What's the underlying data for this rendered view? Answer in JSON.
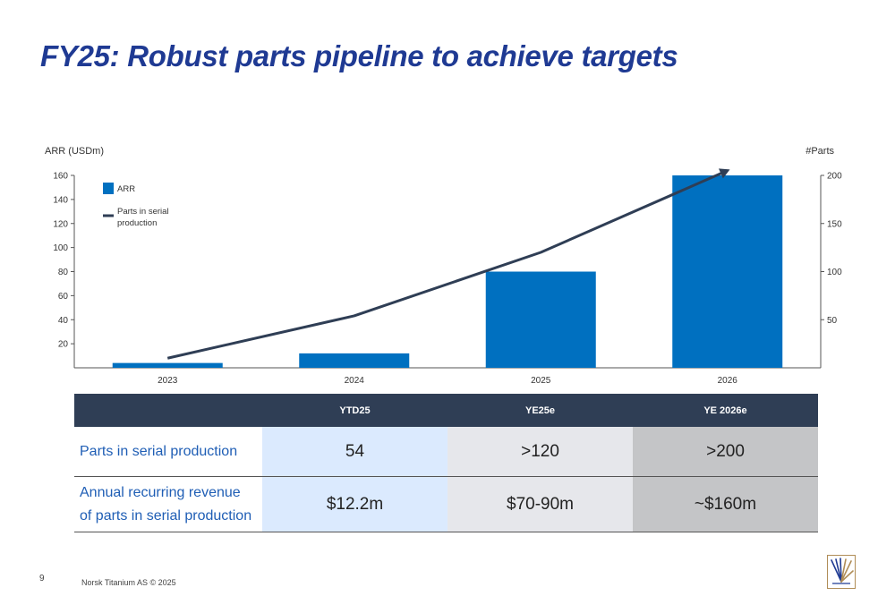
{
  "slide": {
    "title": "FY25: Robust parts pipeline to achieve targets",
    "page_number": "9",
    "footer": "Norsk Titanium AS © 2025"
  },
  "chart_data": {
    "type": "bar",
    "categories": [
      "2023",
      "2024",
      "2025",
      "2026"
    ],
    "series": [
      {
        "name": "ARR",
        "type": "bar",
        "axis": "left",
        "values": [
          4,
          12,
          80,
          160
        ],
        "color": "#0070c0"
      },
      {
        "name": "Parts in serial production",
        "type": "line",
        "axis": "right",
        "values": [
          10,
          54,
          120,
          205
        ],
        "color": "#2f3e55"
      }
    ],
    "ylabel": "ARR (USDm)",
    "y2label": "#Parts",
    "ylim": [
      0,
      160
    ],
    "yticks": [
      20,
      40,
      60,
      80,
      100,
      120,
      140,
      160
    ],
    "y2lim": [
      0,
      200
    ],
    "y2ticks": [
      50,
      100,
      150,
      200
    ],
    "legend": [
      {
        "label": "ARR",
        "kind": "bar"
      },
      {
        "label_lines": [
          "Parts in serial",
          "production"
        ],
        "kind": "line"
      }
    ],
    "legend_position": "top-left",
    "grid": false
  },
  "table": {
    "headers": [
      "",
      "YTD25",
      "YE25e",
      "YE 2026e"
    ],
    "rows": [
      {
        "label_lines": [
          "Parts in serial production"
        ],
        "values": [
          "54",
          ">120",
          ">200"
        ]
      },
      {
        "label_lines": [
          "Annual recurring revenue",
          "of parts in serial production"
        ],
        "values": [
          "$12.2m",
          "$70-90m",
          "~$160m"
        ]
      }
    ]
  },
  "logo": {
    "icon": "norsk-titanium-logo-icon",
    "colors": [
      "#1f3a93",
      "#b08d57"
    ]
  }
}
